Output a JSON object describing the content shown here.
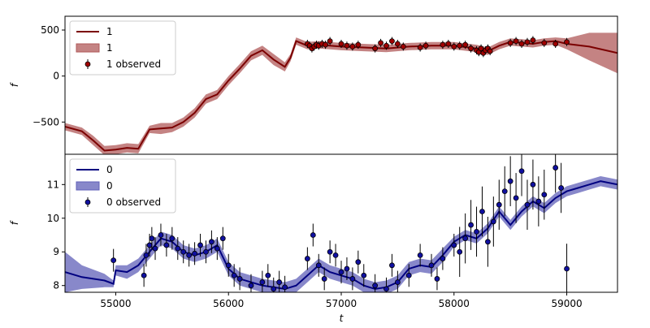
{
  "chart_data": [
    {
      "type": "line",
      "panel": "top",
      "xlabel": "",
      "ylabel": "f",
      "xlim": [
        54550,
        59450
      ],
      "ylim": [
        -850,
        650
      ],
      "yticks": [
        -500,
        0,
        500
      ],
      "ytick_labels": [
        "−500",
        "0",
        "500"
      ],
      "legend": {
        "position": "upper-left",
        "entries": [
          "1",
          "1",
          "1 observed"
        ]
      },
      "colors": {
        "line": "#7b0000",
        "band": "#b05a5a",
        "points": "#a00000"
      },
      "series": [
        {
          "name": "1",
          "kind": "model",
          "x": [
            54550,
            54700,
            54800,
            54900,
            55000,
            55100,
            55200,
            55300,
            55400,
            55500,
            55600,
            55700,
            55800,
            55900,
            56000,
            56100,
            56200,
            56300,
            56400,
            56500,
            56550,
            56600,
            56700,
            56800,
            56900,
            57000,
            57200,
            57400,
            57600,
            57800,
            58000,
            58200,
            58300,
            58400,
            58500,
            58600,
            58700,
            58800,
            58900,
            59000,
            59200,
            59450
          ],
          "y": [
            -550,
            -600,
            -700,
            -810,
            -800,
            -780,
            -790,
            -580,
            -570,
            -560,
            -500,
            -400,
            -250,
            -200,
            -50,
            80,
            220,
            280,
            180,
            100,
            200,
            380,
            330,
            340,
            330,
            320,
            310,
            300,
            320,
            330,
            330,
            300,
            270,
            330,
            370,
            360,
            350,
            370,
            380,
            350,
            320,
            250
          ],
          "band": [
            40,
            40,
            50,
            50,
            50,
            50,
            50,
            40,
            60,
            50,
            50,
            50,
            50,
            50,
            50,
            50,
            50,
            50,
            60,
            50,
            40,
            40,
            40,
            40,
            40,
            40,
            40,
            40,
            40,
            40,
            40,
            40,
            40,
            40,
            40,
            40,
            40,
            40,
            40,
            60,
            150,
            220
          ]
        },
        {
          "name": "1 observed",
          "kind": "observed",
          "x": [
            56700,
            56720,
            56740,
            56760,
            56780,
            56800,
            56830,
            56860,
            56900,
            57000,
            57050,
            57100,
            57150,
            57300,
            57350,
            57400,
            57450,
            57500,
            57550,
            57700,
            57750,
            57900,
            57950,
            58000,
            58050,
            58100,
            58150,
            58200,
            58220,
            58240,
            58260,
            58280,
            58300,
            58320,
            58500,
            58550,
            58600,
            58650,
            58700,
            58800,
            58900,
            59000
          ],
          "y": [
            350,
            330,
            300,
            320,
            340,
            330,
            350,
            340,
            380,
            350,
            330,
            320,
            340,
            300,
            360,
            330,
            380,
            350,
            320,
            310,
            330,
            340,
            350,
            320,
            330,
            340,
            300,
            280,
            260,
            300,
            250,
            280,
            300,
            270,
            360,
            380,
            350,
            370,
            390,
            360,
            350,
            370
          ]
        }
      ]
    },
    {
      "type": "line",
      "panel": "bottom",
      "xlabel": "t",
      "ylabel": "f",
      "xlim": [
        54550,
        59450
      ],
      "ylim": [
        7.8,
        11.9
      ],
      "xticks": [
        55000,
        56000,
        57000,
        58000,
        59000
      ],
      "xtick_labels": [
        "55000",
        "56000",
        "57000",
        "58000",
        "59000"
      ],
      "yticks": [
        8,
        9,
        10,
        11
      ],
      "ytick_labels": [
        "8",
        "9",
        "10",
        "11"
      ],
      "legend": {
        "position": "upper-left",
        "entries": [
          "0",
          "0",
          "0 observed"
        ]
      },
      "colors": {
        "line": "#000080",
        "band": "#6060b8",
        "points": "#1010a0"
      },
      "series": [
        {
          "name": "0",
          "kind": "model",
          "x": [
            54550,
            54700,
            54900,
            54980,
            55000,
            55100,
            55200,
            55300,
            55400,
            55500,
            55600,
            55700,
            55800,
            55900,
            56000,
            56100,
            56200,
            56300,
            56400,
            56500,
            56600,
            56700,
            56800,
            56900,
            57000,
            57100,
            57200,
            57300,
            57400,
            57500,
            57600,
            57700,
            57800,
            57900,
            58000,
            58100,
            58200,
            58300,
            58400,
            58500,
            58600,
            58700,
            58800,
            58900,
            59000,
            59100,
            59200,
            59300,
            59450
          ],
          "y": [
            8.4,
            8.25,
            8.15,
            8.05,
            8.45,
            8.4,
            8.6,
            9.0,
            9.4,
            9.3,
            9.0,
            8.9,
            9.0,
            9.2,
            8.5,
            8.2,
            8.1,
            8.0,
            7.95,
            7.9,
            8.0,
            8.3,
            8.6,
            8.4,
            8.3,
            8.2,
            8.0,
            7.9,
            7.95,
            8.1,
            8.5,
            8.6,
            8.55,
            8.9,
            9.3,
            9.5,
            9.4,
            9.7,
            10.2,
            9.8,
            10.2,
            10.5,
            10.3,
            10.6,
            10.8,
            10.9,
            11.0,
            11.1,
            11.0
          ],
          "band": [
            0.6,
            0.35,
            0.2,
            0.1,
            0.15,
            0.2,
            0.2,
            0.2,
            0.2,
            0.2,
            0.2,
            0.2,
            0.2,
            0.2,
            0.2,
            0.2,
            0.2,
            0.2,
            0.2,
            0.2,
            0.2,
            0.2,
            0.2,
            0.2,
            0.2,
            0.2,
            0.2,
            0.2,
            0.2,
            0.2,
            0.2,
            0.2,
            0.2,
            0.2,
            0.15,
            0.15,
            0.15,
            0.15,
            0.15,
            0.15,
            0.15,
            0.15,
            0.15,
            0.15,
            0.15,
            0.15,
            0.15,
            0.15,
            0.15
          ]
        },
        {
          "name": "0 observed",
          "kind": "observed",
          "x": [
            54980,
            55250,
            55270,
            55300,
            55320,
            55350,
            55400,
            55450,
            55500,
            55550,
            55600,
            55650,
            55700,
            55750,
            55800,
            55850,
            55900,
            55950,
            56000,
            56050,
            56100,
            56200,
            56300,
            56350,
            56400,
            56450,
            56500,
            56700,
            56750,
            56800,
            56850,
            56900,
            56950,
            57000,
            57050,
            57100,
            57150,
            57200,
            57300,
            57400,
            57450,
            57500,
            57600,
            57700,
            57800,
            57850,
            57900,
            58000,
            58050,
            58100,
            58150,
            58200,
            58250,
            58300,
            58350,
            58400,
            58450,
            58500,
            58550,
            58600,
            58650,
            58700,
            58750,
            58800,
            58900,
            58950,
            59000
          ],
          "y": [
            8.75,
            8.3,
            8.9,
            9.2,
            9.4,
            9.1,
            9.5,
            9.2,
            9.4,
            9.1,
            9.0,
            8.9,
            8.95,
            9.2,
            9.0,
            9.3,
            9.1,
            9.4,
            8.6,
            8.3,
            8.2,
            8.0,
            8.1,
            8.3,
            7.9,
            8.1,
            7.95,
            8.8,
            9.5,
            8.6,
            8.2,
            9.0,
            8.9,
            8.4,
            8.5,
            8.2,
            8.7,
            8.3,
            8.0,
            7.9,
            8.6,
            8.1,
            8.3,
            8.9,
            8.6,
            8.2,
            8.8,
            9.2,
            9.0,
            9.4,
            9.8,
            9.6,
            10.2,
            9.3,
            9.9,
            10.4,
            10.8,
            11.1,
            10.6,
            11.4,
            10.4,
            11.0,
            10.5,
            10.7,
            11.5,
            10.9,
            8.5
          ]
        }
      ]
    }
  ]
}
